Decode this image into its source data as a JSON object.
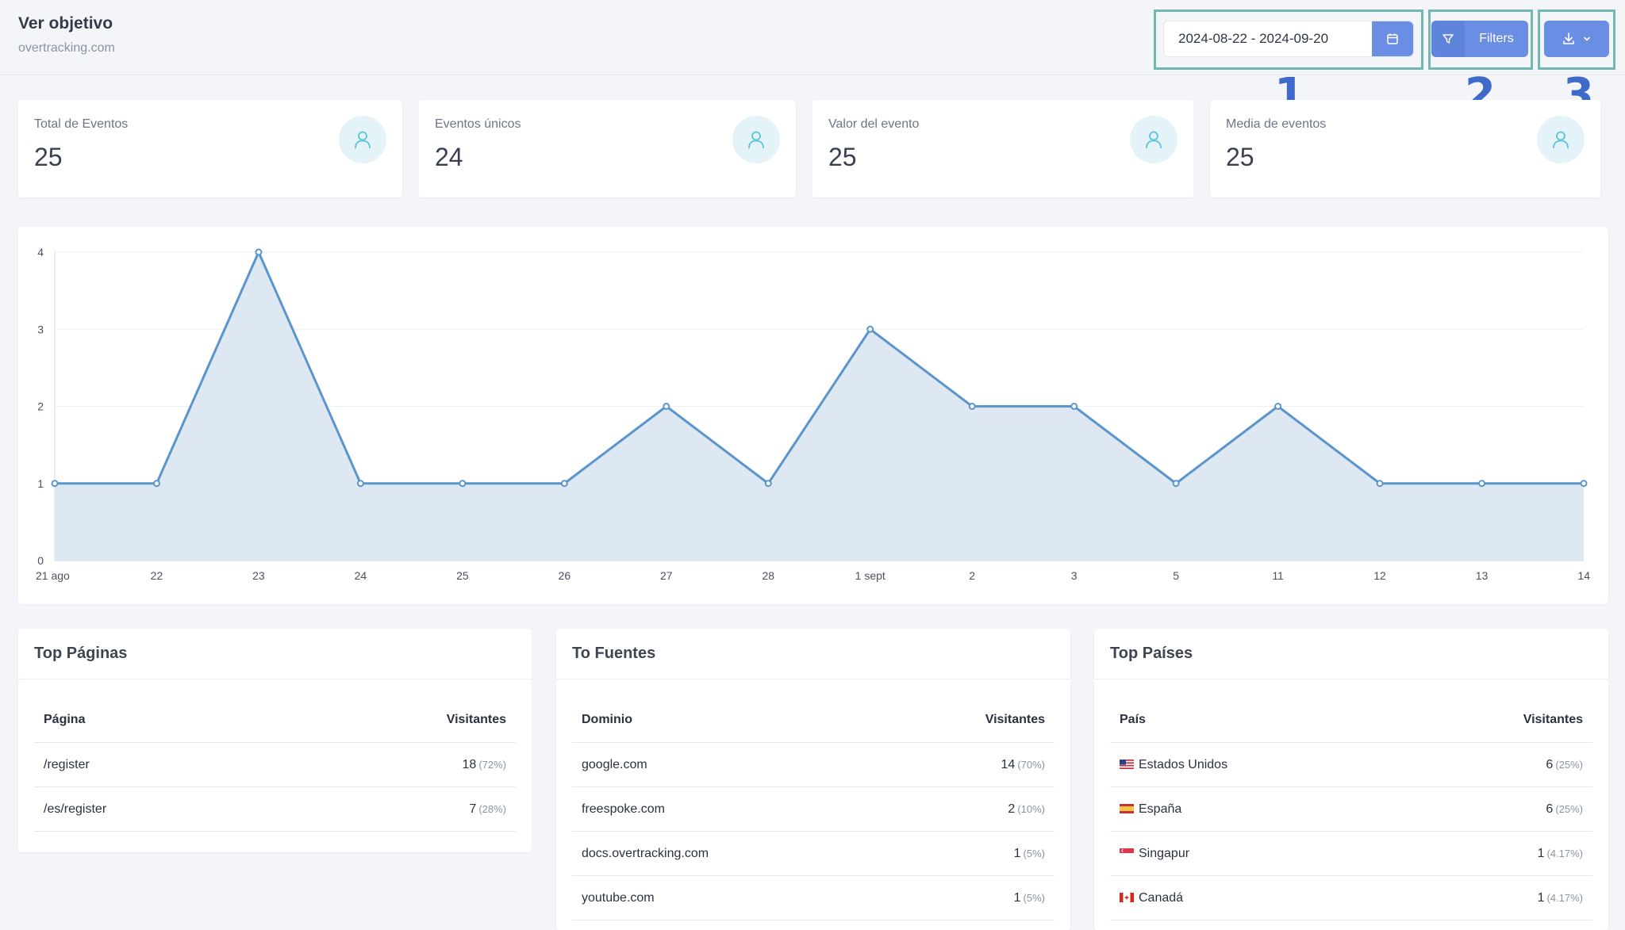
{
  "header": {
    "title": "Ver objetivo",
    "subtitle": "overtracking.com",
    "date_range": "2024-08-22 - 2024-09-20",
    "filters_label": "Filters",
    "annotations": [
      "1",
      "2",
      "3"
    ]
  },
  "stats": [
    {
      "label": "Total de Eventos",
      "value": "25",
      "icon": "user-icon"
    },
    {
      "label": "Eventos únicos",
      "value": "24",
      "icon": "user-icon"
    },
    {
      "label": "Valor del evento",
      "value": "25",
      "icon": "user-icon"
    },
    {
      "label": "Media de eventos",
      "value": "25",
      "icon": "user-icon"
    }
  ],
  "chart_data": {
    "type": "area",
    "categories": [
      "21 ago",
      "22",
      "23",
      "24",
      "25",
      "26",
      "27",
      "28",
      "1 sept",
      "2",
      "3",
      "5",
      "11",
      "12",
      "13",
      "14"
    ],
    "series": [
      {
        "values": [
          1,
          1,
          4,
          1,
          1,
          1,
          2,
          1,
          3,
          2,
          2,
          1,
          2,
          1,
          1,
          1
        ]
      }
    ],
    "yticks": [
      0,
      1,
      2,
      3,
      4
    ],
    "ylim": [
      0,
      4
    ],
    "grid": true,
    "line_color": "#5b95cc",
    "fill_color": "#dde8f2"
  },
  "tables": {
    "pages": {
      "title": "Top Páginas",
      "col1": "Página",
      "col2": "Visitantes",
      "rows": [
        {
          "name": "/register",
          "count": "18",
          "pct": "(72%)"
        },
        {
          "name": "/es/register",
          "count": "7",
          "pct": "(28%)"
        }
      ]
    },
    "sources": {
      "title": "To Fuentes",
      "col1": "Dominio",
      "col2": "Visitantes",
      "rows": [
        {
          "name": "google.com",
          "count": "14",
          "pct": "(70%)"
        },
        {
          "name": "freespoke.com",
          "count": "2",
          "pct": "(10%)"
        },
        {
          "name": "docs.overtracking.com",
          "count": "1",
          "pct": "(5%)"
        },
        {
          "name": "youtube.com",
          "count": "1",
          "pct": "(5%)"
        }
      ]
    },
    "countries": {
      "title": "Top Países",
      "col1": "País",
      "col2": "Visitantes",
      "rows": [
        {
          "name": "Estados Unidos",
          "count": "6",
          "pct": "(25%)",
          "flag": "us-flag-icon"
        },
        {
          "name": "España",
          "count": "6",
          "pct": "(25%)",
          "flag": "es-flag-icon"
        },
        {
          "name": "Singapur",
          "count": "1",
          "pct": "(4.17%)",
          "flag": "sg-flag-icon"
        },
        {
          "name": "Canadá",
          "count": "1",
          "pct": "(4.17%)",
          "flag": "ca-flag-icon"
        }
      ]
    }
  }
}
